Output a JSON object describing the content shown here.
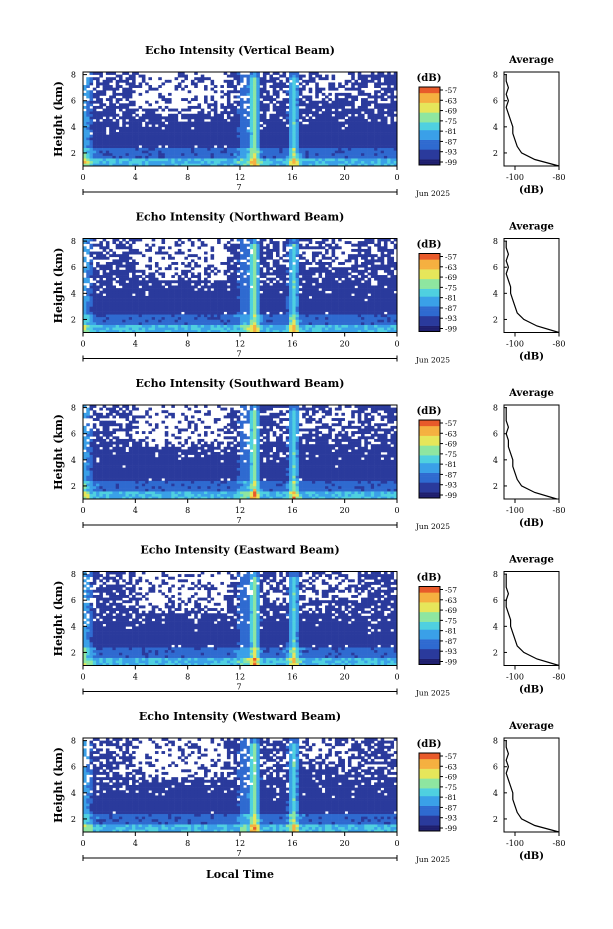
{
  "figure": {
    "x_axis_label": "Local Time",
    "colorbar_unit": "(dB)",
    "profile_title": "Average",
    "profile_xlabel": "(dB)",
    "date_label": "Jun 2025",
    "day_label": "7",
    "ylabel": "Height (km)"
  },
  "colors": {
    "scale": [
      "#1e1e6e",
      "#2a3a9c",
      "#2f6ad0",
      "#3aa0e8",
      "#4fd0e0",
      "#8ee6a0",
      "#e6e65a",
      "#f5b040",
      "#e85a2a"
    ],
    "axis": "#000000",
    "missing": "#ffffff"
  },
  "chart_data": [
    {
      "type": "heatmap",
      "title": "Echo Intensity (Vertical Beam)",
      "x_ticks": [
        "0",
        "4",
        "8",
        "12",
        "16",
        "20",
        "0"
      ],
      "xlim": [
        0,
        24
      ],
      "y_ticks": [
        "2",
        "4",
        "6",
        "8"
      ],
      "ylim": [
        1,
        8.2
      ],
      "colorbar_ticks": [
        "-57",
        "-63",
        "-69",
        "-75",
        "-81",
        "-87",
        "-93",
        "-99"
      ],
      "colorbar_range": [
        -99,
        -57
      ],
      "profile": {
        "title": "Average",
        "x_ticks": [
          "-100",
          "-80"
        ],
        "xlim": [
          -105,
          -80
        ],
        "y_ticks": [
          "2",
          "4",
          "6",
          "8"
        ],
        "ylim": [
          1,
          8.2
        ],
        "height_km": [
          1.0,
          1.5,
          2.0,
          2.5,
          3.0,
          3.5,
          4.0,
          4.5,
          5.0,
          5.5,
          6.0,
          6.5,
          7.0,
          7.5,
          8.0
        ],
        "intensity_db": [
          -80,
          -91,
          -97,
          -99,
          -100,
          -101,
          -101,
          -102,
          -103,
          -104,
          -103,
          -104,
          -103,
          -104,
          -104
        ]
      }
    },
    {
      "type": "heatmap",
      "title": "Echo Intensity (Northward Beam)",
      "x_ticks": [
        "0",
        "4",
        "8",
        "12",
        "16",
        "20",
        "0"
      ],
      "xlim": [
        0,
        24
      ],
      "y_ticks": [
        "2",
        "4",
        "6",
        "8"
      ],
      "ylim": [
        1,
        8.2
      ],
      "colorbar_ticks": [
        "-57",
        "-63",
        "-69",
        "-75",
        "-81",
        "-87",
        "-93",
        "-99"
      ],
      "colorbar_range": [
        -99,
        -57
      ],
      "profile": {
        "title": "Average",
        "x_ticks": [
          "-100",
          "-80"
        ],
        "xlim": [
          -105,
          -80
        ],
        "y_ticks": [
          "2",
          "4",
          "6",
          "8"
        ],
        "ylim": [
          1,
          8.2
        ],
        "height_km": [
          1.0,
          1.5,
          2.0,
          2.5,
          3.0,
          3.5,
          4.0,
          4.5,
          5.0,
          5.5,
          6.0,
          6.5,
          7.0,
          7.5,
          8.0
        ],
        "intensity_db": [
          -80,
          -90,
          -96,
          -99,
          -100,
          -101,
          -102,
          -102,
          -103,
          -104,
          -103,
          -104,
          -103,
          -104,
          -104
        ]
      }
    },
    {
      "type": "heatmap",
      "title": "Echo Intensity (Southward Beam)",
      "x_ticks": [
        "0",
        "4",
        "8",
        "12",
        "16",
        "20",
        "0"
      ],
      "xlim": [
        0,
        24
      ],
      "y_ticks": [
        "2",
        "4",
        "6",
        "8"
      ],
      "ylim": [
        1,
        8.2
      ],
      "colorbar_ticks": [
        "-57",
        "-63",
        "-69",
        "-75",
        "-81",
        "-87",
        "-93",
        "-99"
      ],
      "colorbar_range": [
        -99,
        -57
      ],
      "profile": {
        "title": "Average",
        "x_ticks": [
          "-100",
          "-80"
        ],
        "xlim": [
          -105,
          -80
        ],
        "y_ticks": [
          "2",
          "4",
          "6",
          "8"
        ],
        "ylim": [
          1,
          8.2
        ],
        "height_km": [
          1.0,
          1.5,
          2.0,
          2.5,
          3.0,
          3.5,
          4.0,
          4.5,
          5.0,
          5.5,
          6.0,
          6.5,
          7.0,
          7.5,
          8.0
        ],
        "intensity_db": [
          -81,
          -91,
          -97,
          -99,
          -100,
          -101,
          -101,
          -102,
          -103,
          -103,
          -104,
          -103,
          -104,
          -104,
          -104
        ]
      }
    },
    {
      "type": "heatmap",
      "title": "Echo Intensity (Eastward Beam)",
      "x_ticks": [
        "0",
        "4",
        "8",
        "12",
        "16",
        "20",
        "0"
      ],
      "xlim": [
        0,
        24
      ],
      "y_ticks": [
        "2",
        "4",
        "6",
        "8"
      ],
      "ylim": [
        1,
        8.2
      ],
      "colorbar_ticks": [
        "-57",
        "-63",
        "-69",
        "-75",
        "-81",
        "-87",
        "-93",
        "-99"
      ],
      "colorbar_range": [
        -99,
        -57
      ],
      "profile": {
        "title": "Average",
        "x_ticks": [
          "-100",
          "-80"
        ],
        "xlim": [
          -105,
          -80
        ],
        "y_ticks": [
          "2",
          "4",
          "6",
          "8"
        ],
        "ylim": [
          1,
          8.2
        ],
        "height_km": [
          1.0,
          1.5,
          2.0,
          2.5,
          3.0,
          3.5,
          4.0,
          4.5,
          5.0,
          5.5,
          6.0,
          6.5,
          7.0,
          7.5,
          8.0
        ],
        "intensity_db": [
          -80,
          -90,
          -96,
          -99,
          -100,
          -101,
          -102,
          -102,
          -103,
          -104,
          -104,
          -103,
          -104,
          -104,
          -104
        ]
      }
    },
    {
      "type": "heatmap",
      "title": "Echo Intensity (Westward Beam)",
      "x_ticks": [
        "0",
        "4",
        "8",
        "12",
        "16",
        "20",
        "0"
      ],
      "xlim": [
        0,
        24
      ],
      "y_ticks": [
        "2",
        "4",
        "6",
        "8"
      ],
      "ylim": [
        1,
        8.2
      ],
      "colorbar_ticks": [
        "-57",
        "-63",
        "-69",
        "-75",
        "-81",
        "-87",
        "-93",
        "-99"
      ],
      "colorbar_range": [
        -99,
        -57
      ],
      "profile": {
        "title": "Average",
        "x_ticks": [
          "-100",
          "-80"
        ],
        "xlim": [
          -105,
          -80
        ],
        "y_ticks": [
          "2",
          "4",
          "6",
          "8"
        ],
        "ylim": [
          1,
          8.2
        ],
        "height_km": [
          1.0,
          1.5,
          2.0,
          2.5,
          3.0,
          3.5,
          4.0,
          4.5,
          5.0,
          5.5,
          6.0,
          6.5,
          7.0,
          7.5,
          8.0
        ],
        "intensity_db": [
          -80,
          -91,
          -97,
          -99,
          -100,
          -101,
          -101,
          -102,
          -103,
          -104,
          -103,
          -104,
          -103,
          -104,
          -104
        ]
      }
    }
  ]
}
